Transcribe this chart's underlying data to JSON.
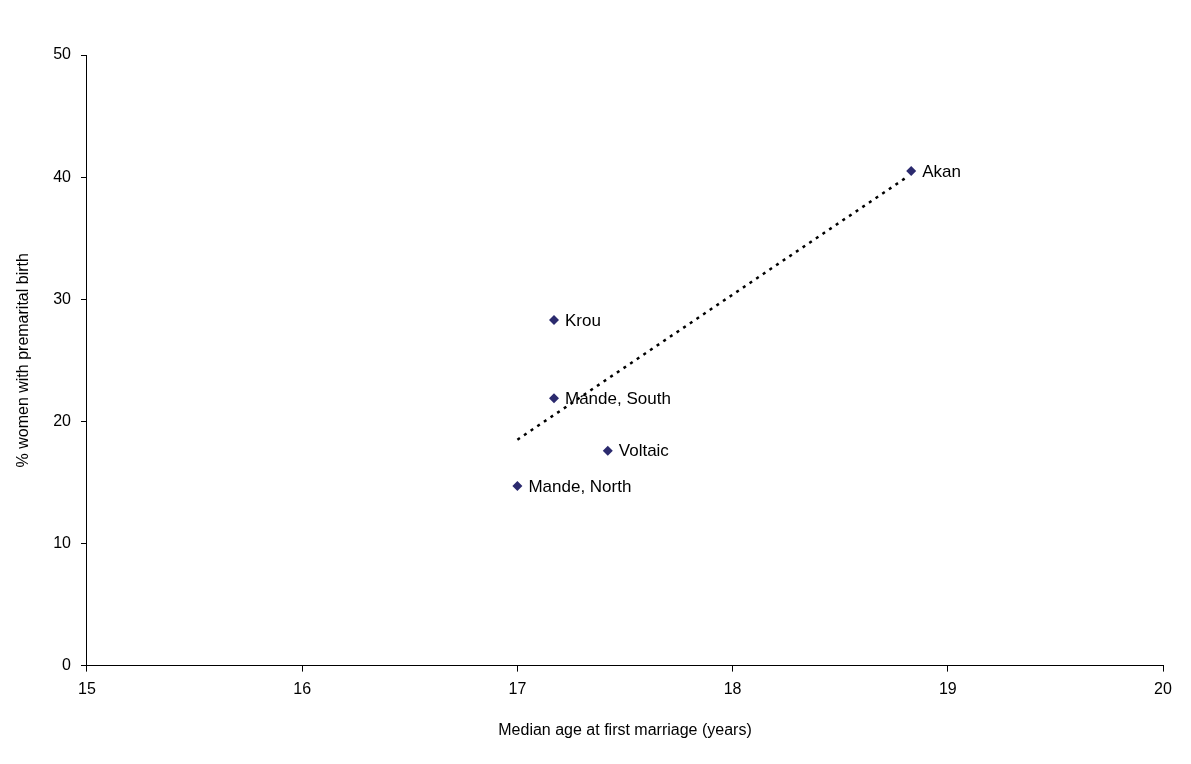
{
  "chart_data": {
    "type": "scatter",
    "xlabel": "Median age at first marriage (years)",
    "ylabel": "% women with premarital birth",
    "xlim": [
      15,
      20
    ],
    "xticks": [
      15,
      16,
      17,
      18,
      19,
      20
    ],
    "ylim": [
      0,
      50
    ],
    "yticks": [
      0,
      10,
      20,
      30,
      40,
      50
    ],
    "grid": false,
    "legend": false,
    "marker": "diamond",
    "series": [
      {
        "color": "#2b2a6e",
        "x": [
          18.83,
          17.17,
          17.17,
          17.42,
          17.0
        ],
        "values": [
          40.5,
          28.3,
          21.9,
          17.6,
          14.7
        ]
      },
      {
        "type": "line",
        "color": "#000000",
        "line_style": "dotted",
        "marker": "none",
        "x": [
          17.0,
          18.81
        ],
        "values": [
          18.5,
          40.0
        ]
      }
    ],
    "annotations": [
      {
        "text": "Akan",
        "x": 18.83,
        "y": 40.5
      },
      {
        "text": "Krou",
        "x": 17.17,
        "y": 28.3
      },
      {
        "text": "Mande, South",
        "x": 17.17,
        "y": 21.9
      },
      {
        "text": "Voltaic",
        "x": 17.42,
        "y": 17.6
      },
      {
        "text": "Mande, North",
        "x": 17.0,
        "y": 14.7
      }
    ]
  }
}
